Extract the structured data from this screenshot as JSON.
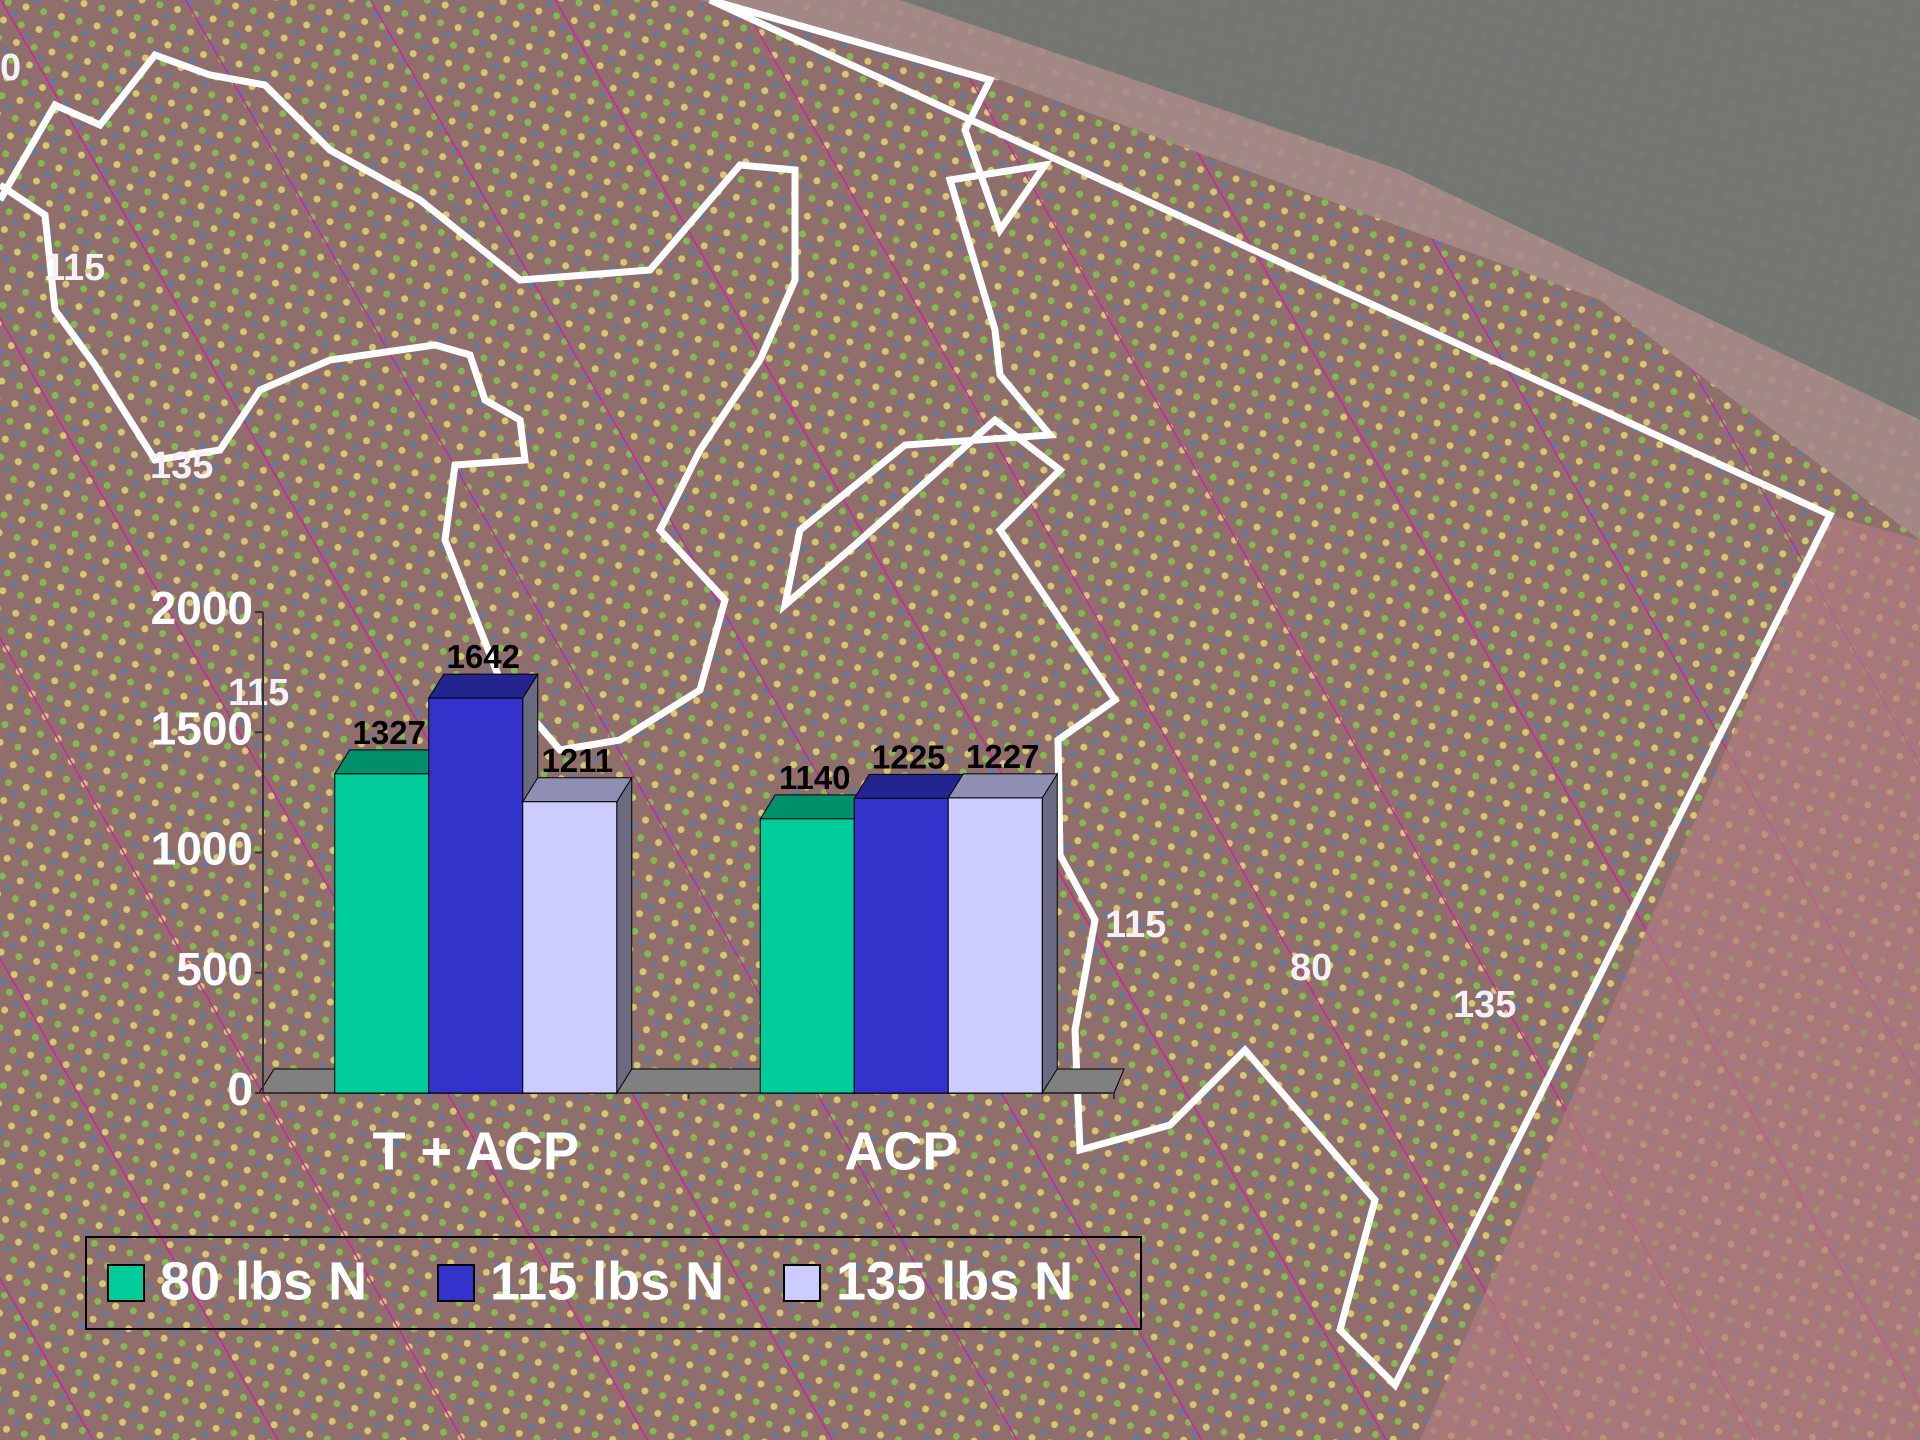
{
  "map_labels": [
    "0",
    "115",
    "135",
    "115",
    "115",
    "80",
    "135"
  ],
  "chart_data": {
    "type": "bar",
    "categories": [
      "T + ACP",
      "ACP"
    ],
    "series": [
      {
        "name": "80 lbs N",
        "color": "#00cc99",
        "values": [
          1327,
          1140
        ]
      },
      {
        "name": "115 lbs N",
        "color": "#3333cc",
        "values": [
          1642,
          1225
        ]
      },
      {
        "name": "135 lbs N",
        "color": "#ccccff",
        "values": [
          1211,
          1227
        ]
      }
    ],
    "ylim": [
      0,
      2000
    ],
    "yticks": [
      0,
      500,
      1000,
      1500,
      2000
    ]
  }
}
